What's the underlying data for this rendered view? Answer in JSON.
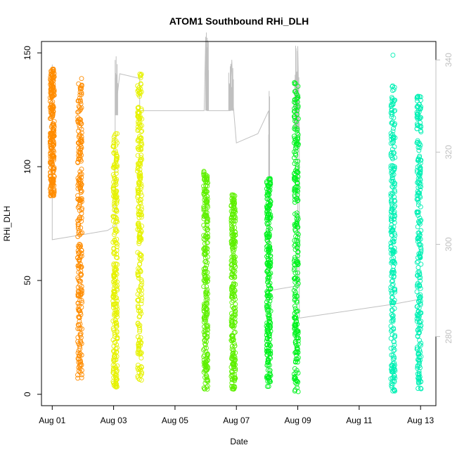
{
  "chart_data": {
    "type": "scatter",
    "title": "ATOM1 Southbound RHi_DLH",
    "xlabel": "Date",
    "ylabel": "RHi_DLH",
    "x_ticks": [
      "Aug 01",
      "Aug 03",
      "Aug 05",
      "Aug 07",
      "Aug 09",
      "Aug 11",
      "Aug 13"
    ],
    "x_tick_days": [
      1,
      3,
      5,
      7,
      9,
      11,
      13
    ],
    "xlim_days": [
      0.65,
      13.5
    ],
    "ylim": [
      -5,
      155
    ],
    "y_ticks": [
      0,
      50,
      100,
      150
    ],
    "right_axis": {
      "ticks": [
        "280",
        "300",
        "320",
        "340"
      ],
      "tick_values": [
        280,
        300,
        320,
        340
      ],
      "range": [
        265,
        344
      ],
      "color": "#c0c0c0"
    },
    "marker": "open-circle",
    "grid": false,
    "colors": {
      "orange": "#ff8c00",
      "yellow": "#e6f200",
      "yellowgreen": "#a8f000",
      "lime": "#5ef000",
      "green": "#00f21e",
      "cyan": "#00f0b4",
      "line": "#c0c0c0"
    },
    "series": [
      {
        "color_key": "orange",
        "x": 1.0,
        "y_min": 87,
        "y_max": 143,
        "extra_y": []
      },
      {
        "color_key": "orange",
        "x": 1.9,
        "y_min": 7,
        "y_max": 140,
        "extra_y": []
      },
      {
        "color_key": "yellow",
        "x": 3.05,
        "y_min": 3,
        "y_max": 115,
        "extra_y": []
      },
      {
        "color_key": "yellow",
        "x": 3.85,
        "y_min": 6,
        "y_max": 141,
        "extra_y": []
      },
      {
        "color_key": "lime",
        "x": 6.0,
        "y_min": 2,
        "y_max": 98,
        "extra_y": []
      },
      {
        "color_key": "lime",
        "x": 6.9,
        "y_min": 2,
        "y_max": 88,
        "extra_y": []
      },
      {
        "color_key": "green",
        "x": 8.05,
        "y_min": 3,
        "y_max": 95,
        "extra_y": []
      },
      {
        "color_key": "green",
        "x": 8.95,
        "y_min": 1,
        "y_max": 137,
        "extra_y": []
      },
      {
        "color_key": "cyan",
        "x": 12.1,
        "y_min": 1,
        "y_max": 137,
        "extra_y": [
          149
        ]
      },
      {
        "color_key": "cyan",
        "x": 12.95,
        "y_min": 2,
        "y_max": 131,
        "extra_y": []
      }
    ],
    "right_series": {
      "name": "",
      "points": [
        [
          1.0,
          339
        ],
        [
          1.0,
          318
        ],
        [
          1.0,
          301
        ],
        [
          2.8,
          303
        ],
        [
          3.05,
          304
        ],
        [
          3.05,
          340
        ],
        [
          3.05,
          328
        ],
        [
          3.2,
          337
        ],
        [
          3.85,
          336
        ],
        [
          3.85,
          329
        ],
        [
          4.7,
          329
        ],
        [
          5.5,
          329
        ],
        [
          5.95,
          329
        ],
        [
          6.0,
          345
        ],
        [
          6.05,
          329
        ],
        [
          6.4,
          329
        ],
        [
          6.8,
          329
        ],
        [
          6.85,
          340
        ],
        [
          6.9,
          330
        ],
        [
          7.0,
          322
        ],
        [
          7.7,
          324
        ],
        [
          8.05,
          329
        ],
        [
          8.1,
          290
        ],
        [
          9.0,
          291
        ],
        [
          9.0,
          343
        ],
        [
          9.05,
          325
        ],
        [
          9.05,
          284
        ],
        [
          12.1,
          287
        ],
        [
          12.9,
          288
        ]
      ]
    }
  }
}
